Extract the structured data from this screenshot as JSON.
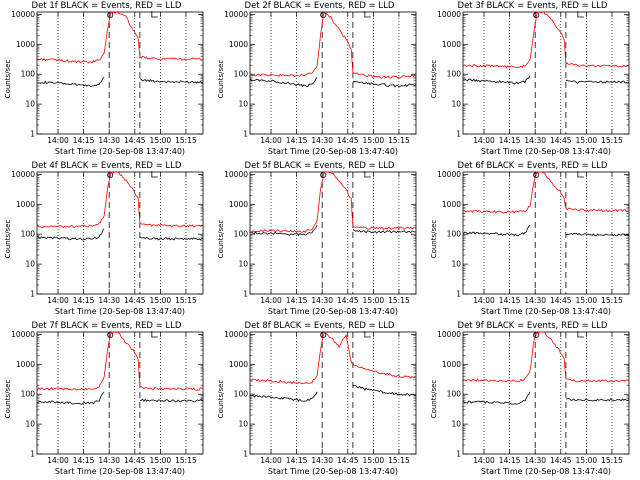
{
  "figure": {
    "ylabel": "Counts/sec",
    "xlabel": "Start Time (20-Sep-08 13:47:40)",
    "xticks": [
      "14:00",
      "14:15",
      "14:30",
      "14:45",
      "15:00",
      "15:15"
    ],
    "yticks": [
      "1",
      "10",
      "100",
      "1000",
      "10000"
    ],
    "colors": {
      "events": "#000000",
      "lld": "#ff0000",
      "axes": "#000000"
    }
  },
  "panels": [
    {
      "title": "Det 1f BLACK = Events, RED = LLD"
    },
    {
      "title": "Det 2f BLACK = Events, RED = LLD"
    },
    {
      "title": "Det 3f BLACK = Events, RED = LLD"
    },
    {
      "title": "Det 4f BLACK = Events, RED = LLD"
    },
    {
      "title": "Det 5f BLACK = Events, RED = LLD"
    },
    {
      "title": "Det 6f BLACK = Events, RED = LLD"
    },
    {
      "title": "Det 7f BLACK = Events, RED = LLD"
    },
    {
      "title": "Det 8f BLACK = Events, RED = LLD"
    },
    {
      "title": "Det 9f BLACK = Events, RED = LLD"
    }
  ],
  "chart_data": [
    {
      "type": "line",
      "title": "Det 1f BLACK = Events, RED = LLD",
      "yscale": "log",
      "ylim": [
        1,
        12000
      ],
      "xlabel": "Start Time (20-Sep-08 13:47:40)",
      "ylabel": "Counts/sec",
      "x": [
        "13:48",
        "14:00",
        "14:10",
        "14:20",
        "14:24",
        "14:27",
        "14:29",
        "14:31",
        "14:35",
        "14:40",
        "14:44",
        "14:47",
        "14:48",
        "14:55",
        "15:05",
        "15:15",
        "15:25"
      ],
      "series": [
        {
          "name": "Events",
          "values": [
            55,
            50,
            45,
            40,
            45,
            80,
            null,
            null,
            null,
            null,
            null,
            null,
            65,
            60,
            55,
            55,
            55
          ]
        },
        {
          "name": "LLD",
          "values": [
            320,
            300,
            260,
            250,
            300,
            500,
            3000,
            12000,
            12000,
            8000,
            3000,
            1500,
            380,
            330,
            320,
            320,
            320
          ]
        }
      ],
      "vlines": [
        "14:30",
        "14:48"
      ],
      "dotted_lines": [
        "14:00",
        "14:15",
        "14:45",
        "15:00",
        "15:15"
      ]
    },
    {
      "type": "line",
      "title": "Det 2f BLACK = Events, RED = LLD",
      "yscale": "log",
      "ylim": [
        1,
        12000
      ],
      "xlabel": "Start Time (20-Sep-08 13:47:40)",
      "ylabel": "Counts/sec",
      "x": [
        "13:48",
        "14:00",
        "14:10",
        "14:20",
        "14:24",
        "14:27",
        "14:29",
        "14:31",
        "14:35",
        "14:40",
        "14:44",
        "14:47",
        "14:48",
        "14:55",
        "15:05",
        "15:15",
        "15:25"
      ],
      "series": [
        {
          "name": "Events",
          "values": [
            65,
            60,
            50,
            40,
            45,
            80,
            null,
            null,
            null,
            null,
            null,
            null,
            55,
            50,
            45,
            40,
            45
          ]
        },
        {
          "name": "LLD",
          "values": [
            95,
            95,
            90,
            90,
            110,
            200,
            2000,
            12000,
            8000,
            3000,
            1500,
            700,
            110,
            90,
            80,
            80,
            90
          ]
        }
      ],
      "vlines": [
        "14:30",
        "14:48"
      ],
      "dotted_lines": [
        "14:00",
        "14:15",
        "14:45",
        "15:00",
        "15:15"
      ]
    },
    {
      "type": "line",
      "title": "Det 3f BLACK = Events, RED = LLD",
      "yscale": "log",
      "ylim": [
        1,
        12000
      ],
      "xlabel": "Start Time (20-Sep-08 13:47:40)",
      "ylabel": "Counts/sec",
      "x": [
        "13:48",
        "14:00",
        "14:10",
        "14:20",
        "14:24",
        "14:27",
        "14:29",
        "14:31",
        "14:35",
        "14:40",
        "14:44",
        "14:47",
        "14:48",
        "14:55",
        "15:05",
        "15:15",
        "15:25"
      ],
      "series": [
        {
          "name": "Events",
          "values": [
            65,
            60,
            55,
            50,
            55,
            90,
            null,
            null,
            null,
            null,
            null,
            null,
            60,
            55,
            55,
            55,
            55
          ]
        },
        {
          "name": "LLD",
          "values": [
            200,
            190,
            180,
            170,
            190,
            300,
            2000,
            12000,
            12000,
            6000,
            3000,
            1500,
            230,
            200,
            190,
            190,
            190
          ]
        }
      ],
      "vlines": [
        "14:30",
        "14:48"
      ],
      "dotted_lines": [
        "14:00",
        "14:15",
        "14:45",
        "15:00",
        "15:15"
      ]
    },
    {
      "type": "line",
      "title": "Det 4f BLACK = Events, RED = LLD",
      "yscale": "log",
      "ylim": [
        1,
        12000
      ],
      "xlabel": "Start Time (20-Sep-08 13:47:40)",
      "ylabel": "Counts/sec",
      "x": [
        "13:48",
        "14:00",
        "14:10",
        "14:20",
        "14:24",
        "14:27",
        "14:29",
        "14:31",
        "14:35",
        "14:40",
        "14:44",
        "14:47",
        "14:48",
        "14:55",
        "15:05",
        "15:15",
        "15:25"
      ],
      "series": [
        {
          "name": "Events",
          "values": [
            80,
            75,
            70,
            70,
            80,
            150,
            null,
            null,
            null,
            null,
            null,
            null,
            75,
            70,
            70,
            70,
            70
          ]
        },
        {
          "name": "LLD",
          "values": [
            180,
            180,
            180,
            190,
            220,
            400,
            3000,
            12000,
            12000,
            6000,
            3000,
            1500,
            220,
            200,
            190,
            190,
            190
          ]
        }
      ],
      "vlines": [
        "14:30",
        "14:48"
      ],
      "dotted_lines": [
        "14:00",
        "14:15",
        "14:45",
        "15:00",
        "15:15"
      ]
    },
    {
      "type": "line",
      "title": "Det 5f BLACK = Events, RED = LLD",
      "yscale": "log",
      "ylim": [
        1,
        12000
      ],
      "xlabel": "Start Time (20-Sep-08 13:47:40)",
      "ylabel": "Counts/sec",
      "x": [
        "13:48",
        "14:00",
        "14:10",
        "14:20",
        "14:24",
        "14:27",
        "14:29",
        "14:31",
        "14:35",
        "14:40",
        "14:44",
        "14:47",
        "14:48",
        "14:55",
        "15:05",
        "15:15",
        "15:25"
      ],
      "series": [
        {
          "name": "Events",
          "values": [
            110,
            110,
            100,
            95,
            110,
            200,
            null,
            null,
            null,
            null,
            null,
            null,
            130,
            120,
            120,
            120,
            120
          ]
        },
        {
          "name": "LLD",
          "values": [
            130,
            130,
            130,
            125,
            150,
            280,
            3000,
            12000,
            12000,
            6000,
            3000,
            1500,
            180,
            160,
            160,
            160,
            160
          ]
        }
      ],
      "vlines": [
        "14:30",
        "14:48"
      ],
      "dotted_lines": [
        "14:00",
        "14:15",
        "14:45",
        "15:00",
        "15:15"
      ]
    },
    {
      "type": "line",
      "title": "Det 6f BLACK = Events, RED = LLD",
      "yscale": "log",
      "ylim": [
        1,
        12000
      ],
      "xlabel": "Start Time (20-Sep-08 13:47:40)",
      "ylabel": "Counts/sec",
      "x": [
        "13:48",
        "14:00",
        "14:10",
        "14:20",
        "14:24",
        "14:27",
        "14:29",
        "14:31",
        "14:35",
        "14:40",
        "14:44",
        "14:47",
        "14:48",
        "14:55",
        "15:05",
        "15:15",
        "15:25"
      ],
      "series": [
        {
          "name": "Events",
          "values": [
            110,
            110,
            100,
            95,
            110,
            200,
            null,
            null,
            null,
            null,
            null,
            null,
            100,
            100,
            95,
            95,
            95
          ]
        },
        {
          "name": "LLD",
          "values": [
            600,
            580,
            560,
            560,
            600,
            900,
            5000,
            12000,
            12000,
            5000,
            3000,
            1500,
            700,
            650,
            620,
            620,
            620
          ]
        }
      ],
      "vlines": [
        "14:30",
        "14:48"
      ],
      "dotted_lines": [
        "14:00",
        "14:15",
        "14:45",
        "15:00",
        "15:15"
      ]
    },
    {
      "type": "line",
      "title": "Det 7f BLACK = Events, RED = LLD",
      "yscale": "log",
      "ylim": [
        1,
        12000
      ],
      "xlabel": "Start Time (20-Sep-08 13:47:40)",
      "ylabel": "Counts/sec",
      "x": [
        "13:48",
        "14:00",
        "14:10",
        "14:20",
        "14:24",
        "14:27",
        "14:29",
        "14:31",
        "14:35",
        "14:40",
        "14:44",
        "14:47",
        "14:48",
        "14:55",
        "15:05",
        "15:15",
        "15:25"
      ],
      "series": [
        {
          "name": "Events",
          "values": [
            55,
            55,
            50,
            50,
            60,
            120,
            null,
            null,
            null,
            null,
            null,
            null,
            65,
            60,
            60,
            60,
            60
          ]
        },
        {
          "name": "LLD",
          "values": [
            150,
            150,
            145,
            145,
            170,
            350,
            3000,
            12000,
            12000,
            5000,
            3000,
            1500,
            170,
            150,
            150,
            150,
            150
          ]
        }
      ],
      "vlines": [
        "14:30",
        "14:48"
      ],
      "dotted_lines": [
        "14:00",
        "14:15",
        "14:45",
        "15:00",
        "15:15"
      ]
    },
    {
      "type": "line",
      "title": "Det 8f BLACK = Events, RED = LLD",
      "yscale": "log",
      "ylim": [
        1,
        12000
      ],
      "xlabel": "Start Time (20-Sep-08 13:47:40)",
      "ylabel": "Counts/sec",
      "x": [
        "13:48",
        "14:00",
        "14:10",
        "14:20",
        "14:24",
        "14:27",
        "14:29",
        "14:31",
        "14:35",
        "14:40",
        "14:44",
        "14:47",
        "14:48",
        "14:55",
        "15:05",
        "15:15",
        "15:25"
      ],
      "series": [
        {
          "name": "Events",
          "values": [
            90,
            80,
            70,
            60,
            70,
            120,
            null,
            null,
            null,
            null,
            null,
            null,
            200,
            150,
            120,
            100,
            90
          ]
        },
        {
          "name": "LLD",
          "values": [
            300,
            280,
            250,
            230,
            260,
            400,
            3000,
            12000,
            8000,
            4000,
            10000,
            1200,
            1000,
            700,
            500,
            400,
            350
          ]
        }
      ],
      "vlines": [
        "14:30",
        "14:48"
      ],
      "dotted_lines": [
        "14:00",
        "14:15",
        "14:45",
        "15:00",
        "15:15"
      ]
    },
    {
      "type": "line",
      "title": "Det 9f BLACK = Events, RED = LLD",
      "yscale": "log",
      "ylim": [
        1,
        12000
      ],
      "xlabel": "Start Time (20-Sep-08 13:47:40)",
      "ylabel": "Counts/sec",
      "x": [
        "13:48",
        "14:00",
        "14:10",
        "14:20",
        "14:24",
        "14:27",
        "14:29",
        "14:31",
        "14:35",
        "14:40",
        "14:44",
        "14:47",
        "14:48",
        "14:55",
        "15:05",
        "15:15",
        "15:25"
      ],
      "series": [
        {
          "name": "Events",
          "values": [
            55,
            55,
            50,
            50,
            60,
            120,
            null,
            null,
            null,
            null,
            null,
            null,
            70,
            65,
            65,
            65,
            65
          ]
        },
        {
          "name": "LLD",
          "values": [
            300,
            290,
            280,
            280,
            320,
            600,
            5000,
            12000,
            12000,
            6000,
            3000,
            1500,
            300,
            280,
            280,
            280,
            280
          ]
        }
      ],
      "vlines": [
        "14:30",
        "14:48"
      ],
      "dotted_lines": [
        "14:00",
        "14:15",
        "14:45",
        "15:00",
        "15:15"
      ]
    }
  ]
}
